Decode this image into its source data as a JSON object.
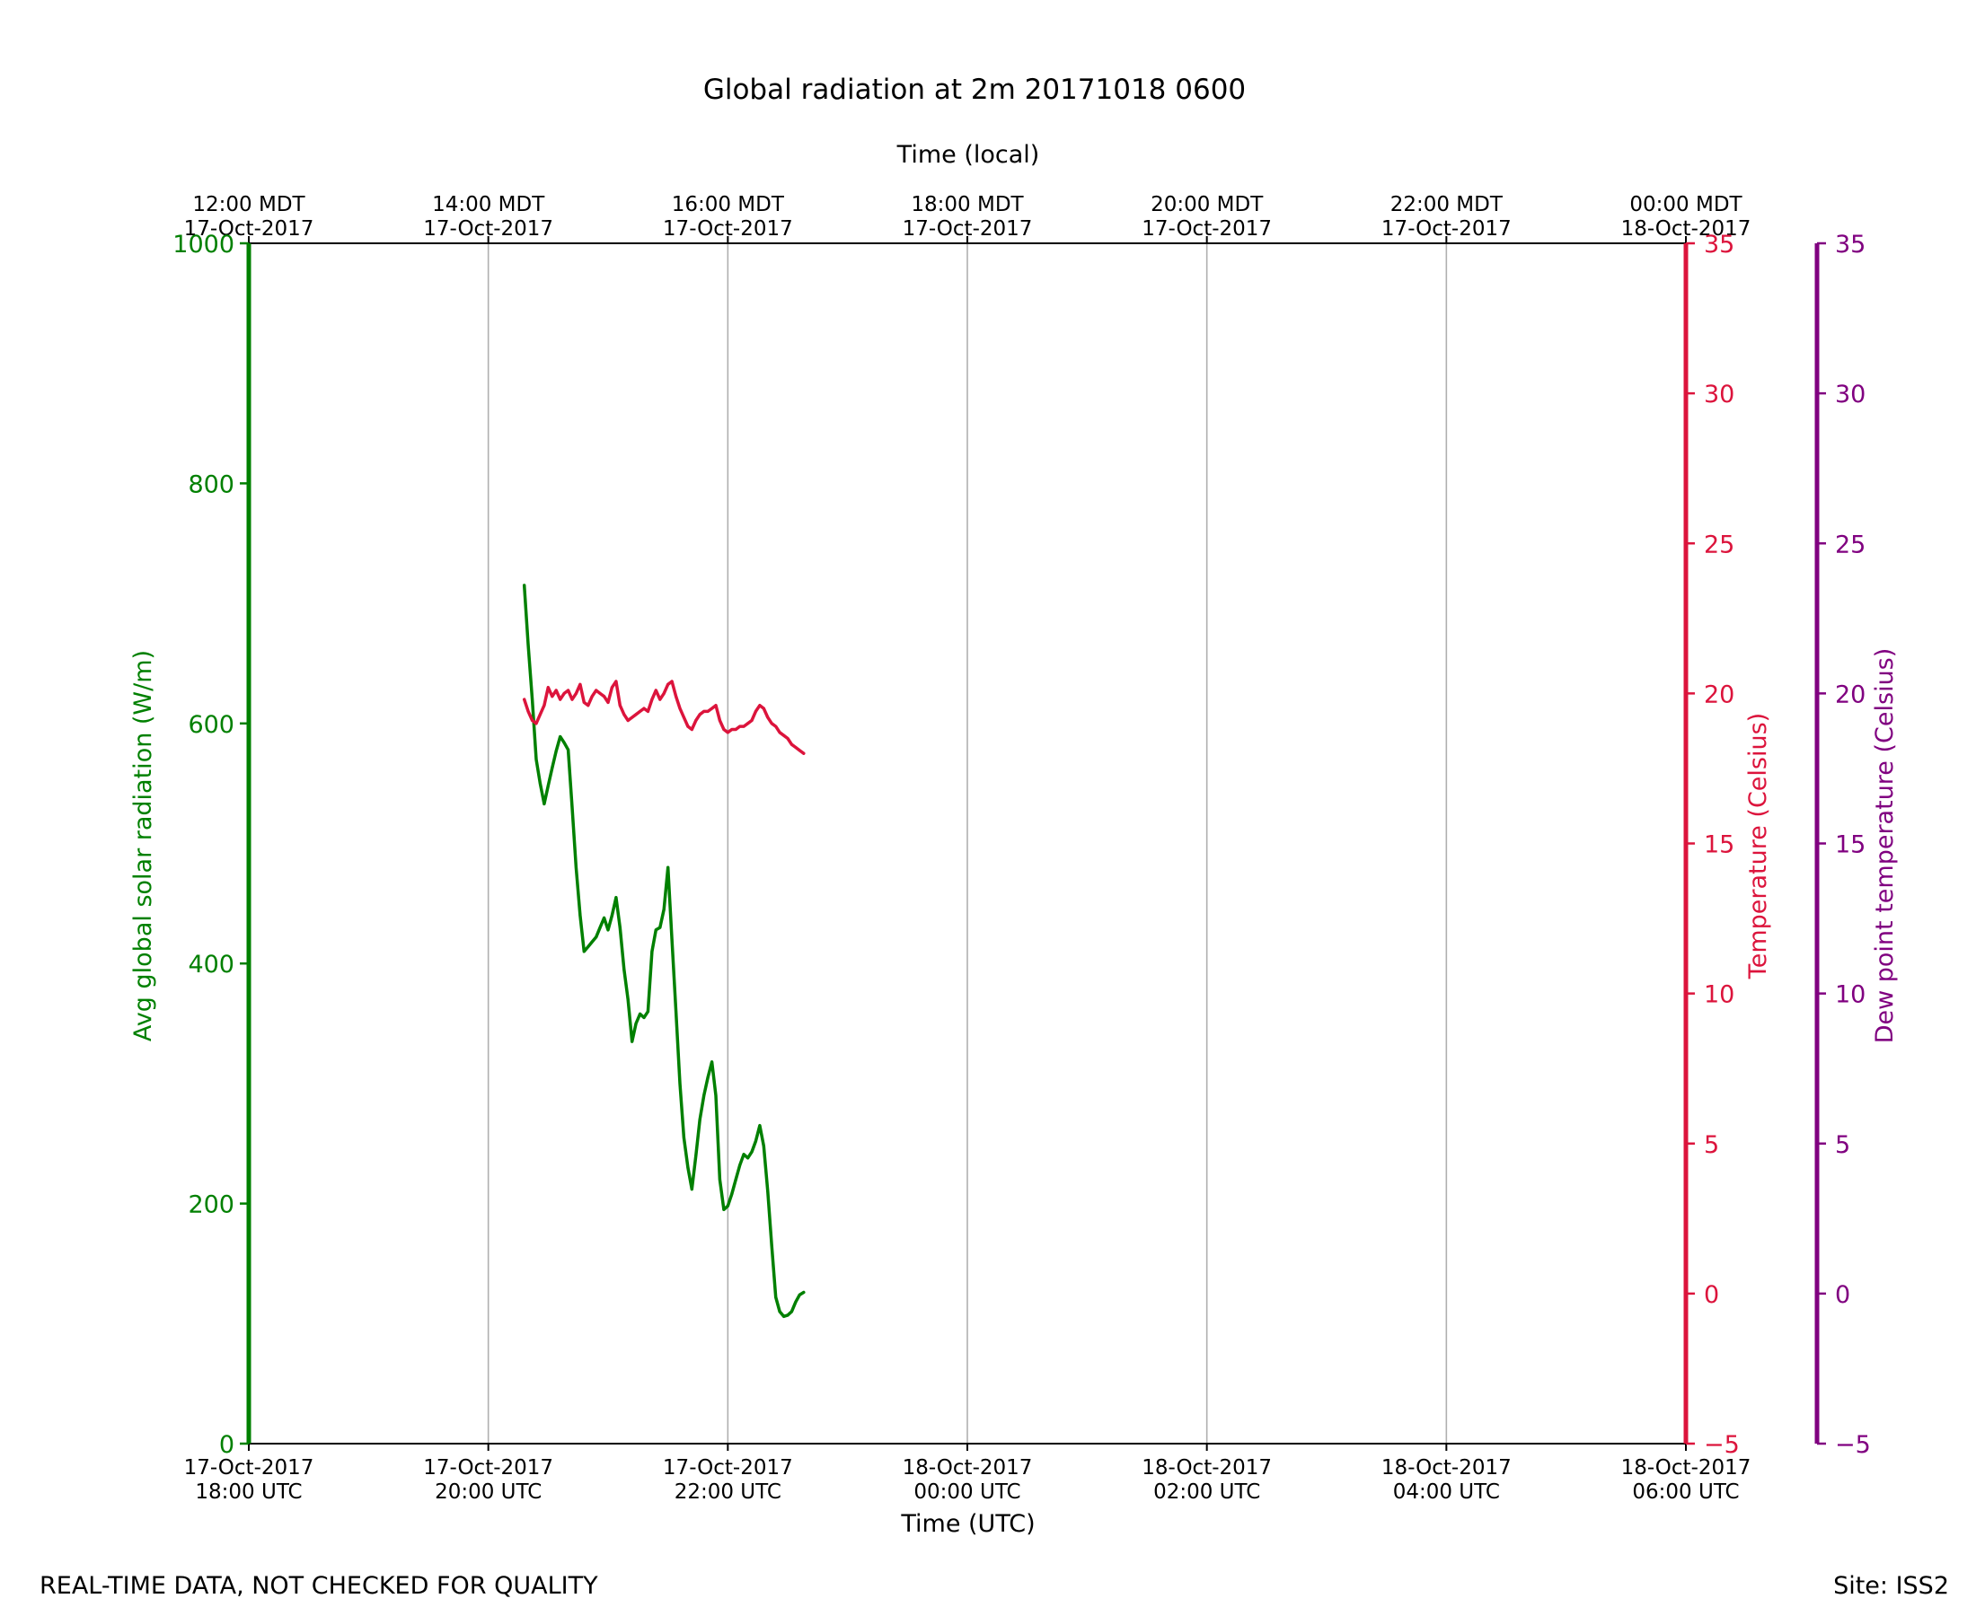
{
  "chart_data": {
    "type": "line",
    "title": "Global radiation at 2m 20171018 0600",
    "xlabel": "Time (UTC)",
    "top_xlabel": "Time (local)",
    "ylabel_left": "Avg global solar radiation (W/m)",
    "ylabel_right_1": "Temperature (Celsius)",
    "ylabel_right_2": "Dew point temperature (Celsius)",
    "xlim": [
      "2017-10-17T18:00Z",
      "2017-10-18T06:00Z"
    ],
    "ylim_left": [
      0,
      1000
    ],
    "ylim_right_1": [
      -5,
      35
    ],
    "ylim_right_2": [
      -5,
      35
    ],
    "grid": "vertical lines at bottom x-axis ticks",
    "x_ticks_bottom": [
      {
        "t": "2017-10-17T18:00Z",
        "line1": "17-Oct-2017",
        "line2": "18:00 UTC"
      },
      {
        "t": "2017-10-17T20:00Z",
        "line1": "17-Oct-2017",
        "line2": "20:00 UTC"
      },
      {
        "t": "2017-10-17T22:00Z",
        "line1": "17-Oct-2017",
        "line2": "22:00 UTC"
      },
      {
        "t": "2017-10-18T00:00Z",
        "line1": "18-Oct-2017",
        "line2": "00:00 UTC"
      },
      {
        "t": "2017-10-18T02:00Z",
        "line1": "18-Oct-2017",
        "line2": "02:00 UTC"
      },
      {
        "t": "2017-10-18T04:00Z",
        "line1": "18-Oct-2017",
        "line2": "04:00 UTC"
      },
      {
        "t": "2017-10-18T06:00Z",
        "line1": "18-Oct-2017",
        "line2": "06:00 UTC"
      }
    ],
    "x_ticks_top": [
      {
        "t": "2017-10-17T18:00Z",
        "line1": "12:00 MDT",
        "line2": "17-Oct-2017"
      },
      {
        "t": "2017-10-17T20:00Z",
        "line1": "14:00 MDT",
        "line2": "17-Oct-2017"
      },
      {
        "t": "2017-10-17T22:00Z",
        "line1": "16:00 MDT",
        "line2": "17-Oct-2017"
      },
      {
        "t": "2017-10-18T00:00Z",
        "line1": "18:00 MDT",
        "line2": "17-Oct-2017"
      },
      {
        "t": "2017-10-18T02:00Z",
        "line1": "20:00 MDT",
        "line2": "17-Oct-2017"
      },
      {
        "t": "2017-10-18T04:00Z",
        "line1": "22:00 MDT",
        "line2": "17-Oct-2017"
      },
      {
        "t": "2017-10-18T06:00Z",
        "line1": "00:00 MDT",
        "line2": "18-Oct-2017"
      }
    ],
    "y_ticks_left": [
      0,
      200,
      400,
      600,
      800,
      1000
    ],
    "y_ticks_right_1": [
      -5,
      0,
      5,
      10,
      15,
      20,
      25,
      30,
      35
    ],
    "y_ticks_right_2": [
      -5,
      0,
      5,
      10,
      15,
      20,
      25,
      30,
      35
    ],
    "series": [
      {
        "color": "#008000",
        "axis": "left",
        "points": [
          [
            "2017-10-17T20:18Z",
            715
          ],
          [
            "2017-10-17T20:20Z",
            665
          ],
          [
            "2017-10-17T20:22Z",
            620
          ],
          [
            "2017-10-17T20:24Z",
            570
          ],
          [
            "2017-10-17T20:26Z",
            550
          ],
          [
            "2017-10-17T20:28Z",
            533
          ],
          [
            "2017-10-17T20:30Z",
            548
          ],
          [
            "2017-10-17T20:32Z",
            563
          ],
          [
            "2017-10-17T20:34Z",
            577
          ],
          [
            "2017-10-17T20:36Z",
            589
          ],
          [
            "2017-10-17T20:38Z",
            584
          ],
          [
            "2017-10-17T20:40Z",
            578
          ],
          [
            "2017-10-17T20:42Z",
            530
          ],
          [
            "2017-10-17T20:44Z",
            480
          ],
          [
            "2017-10-17T20:46Z",
            440
          ],
          [
            "2017-10-17T20:48Z",
            410
          ],
          [
            "2017-10-17T20:50Z",
            414
          ],
          [
            "2017-10-17T20:52Z",
            418
          ],
          [
            "2017-10-17T20:54Z",
            422
          ],
          [
            "2017-10-17T20:56Z",
            430
          ],
          [
            "2017-10-17T20:58Z",
            438
          ],
          [
            "2017-10-17T21:00Z",
            428
          ],
          [
            "2017-10-17T21:02Z",
            440
          ],
          [
            "2017-10-17T21:04Z",
            455
          ],
          [
            "2017-10-17T21:06Z",
            430
          ],
          [
            "2017-10-17T21:08Z",
            395
          ],
          [
            "2017-10-17T21:10Z",
            370
          ],
          [
            "2017-10-17T21:12Z",
            335
          ],
          [
            "2017-10-17T21:14Z",
            350
          ],
          [
            "2017-10-17T21:16Z",
            358
          ],
          [
            "2017-10-17T21:18Z",
            355
          ],
          [
            "2017-10-17T21:20Z",
            360
          ],
          [
            "2017-10-17T21:22Z",
            410
          ],
          [
            "2017-10-17T21:24Z",
            428
          ],
          [
            "2017-10-17T21:26Z",
            430
          ],
          [
            "2017-10-17T21:28Z",
            445
          ],
          [
            "2017-10-17T21:30Z",
            480
          ],
          [
            "2017-10-17T21:32Z",
            420
          ],
          [
            "2017-10-17T21:34Z",
            360
          ],
          [
            "2017-10-17T21:36Z",
            300
          ],
          [
            "2017-10-17T21:38Z",
            255
          ],
          [
            "2017-10-17T21:40Z",
            230
          ],
          [
            "2017-10-17T21:42Z",
            212
          ],
          [
            "2017-10-17T21:44Z",
            240
          ],
          [
            "2017-10-17T21:46Z",
            270
          ],
          [
            "2017-10-17T21:48Z",
            290
          ],
          [
            "2017-10-17T21:50Z",
            305
          ],
          [
            "2017-10-17T21:52Z",
            318
          ],
          [
            "2017-10-17T21:54Z",
            290
          ],
          [
            "2017-10-17T21:56Z",
            220
          ],
          [
            "2017-10-17T21:58Z",
            195
          ],
          [
            "2017-10-17T22:00Z",
            198
          ],
          [
            "2017-10-17T22:02Z",
            208
          ],
          [
            "2017-10-17T22:04Z",
            220
          ],
          [
            "2017-10-17T22:06Z",
            232
          ],
          [
            "2017-10-17T22:08Z",
            241
          ],
          [
            "2017-10-17T22:10Z",
            238
          ],
          [
            "2017-10-17T22:12Z",
            243
          ],
          [
            "2017-10-17T22:14Z",
            252
          ],
          [
            "2017-10-17T22:16Z",
            265
          ],
          [
            "2017-10-17T22:18Z",
            248
          ],
          [
            "2017-10-17T22:20Z",
            210
          ],
          [
            "2017-10-17T22:22Z",
            165
          ],
          [
            "2017-10-17T22:24Z",
            122
          ],
          [
            "2017-10-17T22:26Z",
            110
          ],
          [
            "2017-10-17T22:28Z",
            106
          ],
          [
            "2017-10-17T22:30Z",
            107
          ],
          [
            "2017-10-17T22:32Z",
            110
          ],
          [
            "2017-10-17T22:34Z",
            118
          ],
          [
            "2017-10-17T22:36Z",
            124
          ],
          [
            "2017-10-17T22:38Z",
            126
          ]
        ]
      },
      {
        "color": "#DC143C",
        "axis": "right_1",
        "points": [
          [
            "2017-10-17T20:18Z",
            19.8
          ],
          [
            "2017-10-17T20:20Z",
            19.4
          ],
          [
            "2017-10-17T20:22Z",
            19.1
          ],
          [
            "2017-10-17T20:24Z",
            19.0
          ],
          [
            "2017-10-17T20:26Z",
            19.3
          ],
          [
            "2017-10-17T20:28Z",
            19.6
          ],
          [
            "2017-10-17T20:30Z",
            20.2
          ],
          [
            "2017-10-17T20:32Z",
            19.9
          ],
          [
            "2017-10-17T20:34Z",
            20.1
          ],
          [
            "2017-10-17T20:36Z",
            19.8
          ],
          [
            "2017-10-17T20:38Z",
            20.0
          ],
          [
            "2017-10-17T20:40Z",
            20.1
          ],
          [
            "2017-10-17T20:42Z",
            19.8
          ],
          [
            "2017-10-17T20:44Z",
            20.0
          ],
          [
            "2017-10-17T20:46Z",
            20.3
          ],
          [
            "2017-10-17T20:48Z",
            19.7
          ],
          [
            "2017-10-17T20:50Z",
            19.6
          ],
          [
            "2017-10-17T20:52Z",
            19.9
          ],
          [
            "2017-10-17T20:54Z",
            20.1
          ],
          [
            "2017-10-17T20:56Z",
            20.0
          ],
          [
            "2017-10-17T20:58Z",
            19.9
          ],
          [
            "2017-10-17T21:00Z",
            19.7
          ],
          [
            "2017-10-17T21:02Z",
            20.2
          ],
          [
            "2017-10-17T21:04Z",
            20.4
          ],
          [
            "2017-10-17T21:06Z",
            19.6
          ],
          [
            "2017-10-17T21:08Z",
            19.3
          ],
          [
            "2017-10-17T21:10Z",
            19.1
          ],
          [
            "2017-10-17T21:12Z",
            19.2
          ],
          [
            "2017-10-17T21:14Z",
            19.3
          ],
          [
            "2017-10-17T21:16Z",
            19.4
          ],
          [
            "2017-10-17T21:18Z",
            19.5
          ],
          [
            "2017-10-17T21:20Z",
            19.4
          ],
          [
            "2017-10-17T21:22Z",
            19.8
          ],
          [
            "2017-10-17T21:24Z",
            20.1
          ],
          [
            "2017-10-17T21:26Z",
            19.8
          ],
          [
            "2017-10-17T21:28Z",
            20.0
          ],
          [
            "2017-10-17T21:30Z",
            20.3
          ],
          [
            "2017-10-17T21:32Z",
            20.4
          ],
          [
            "2017-10-17T21:34Z",
            19.9
          ],
          [
            "2017-10-17T21:36Z",
            19.5
          ],
          [
            "2017-10-17T21:38Z",
            19.2
          ],
          [
            "2017-10-17T21:40Z",
            18.9
          ],
          [
            "2017-10-17T21:42Z",
            18.8
          ],
          [
            "2017-10-17T21:44Z",
            19.1
          ],
          [
            "2017-10-17T21:46Z",
            19.3
          ],
          [
            "2017-10-17T21:48Z",
            19.4
          ],
          [
            "2017-10-17T21:50Z",
            19.4
          ],
          [
            "2017-10-17T21:52Z",
            19.5
          ],
          [
            "2017-10-17T21:54Z",
            19.6
          ],
          [
            "2017-10-17T21:56Z",
            19.1
          ],
          [
            "2017-10-17T21:58Z",
            18.8
          ],
          [
            "2017-10-17T22:00Z",
            18.7
          ],
          [
            "2017-10-17T22:02Z",
            18.8
          ],
          [
            "2017-10-17T22:04Z",
            18.8
          ],
          [
            "2017-10-17T22:06Z",
            18.9
          ],
          [
            "2017-10-17T22:08Z",
            18.9
          ],
          [
            "2017-10-17T22:10Z",
            19.0
          ],
          [
            "2017-10-17T22:12Z",
            19.1
          ],
          [
            "2017-10-17T22:14Z",
            19.4
          ],
          [
            "2017-10-17T22:16Z",
            19.6
          ],
          [
            "2017-10-17T22:18Z",
            19.5
          ],
          [
            "2017-10-17T22:20Z",
            19.2
          ],
          [
            "2017-10-17T22:22Z",
            19.0
          ],
          [
            "2017-10-17T22:24Z",
            18.9
          ],
          [
            "2017-10-17T22:26Z",
            18.7
          ],
          [
            "2017-10-17T22:28Z",
            18.6
          ],
          [
            "2017-10-17T22:30Z",
            18.5
          ],
          [
            "2017-10-17T22:32Z",
            18.3
          ],
          [
            "2017-10-17T22:34Z",
            18.2
          ],
          [
            "2017-10-17T22:36Z",
            18.1
          ],
          [
            "2017-10-17T22:38Z",
            18.0
          ]
        ]
      }
    ]
  },
  "footer": {
    "left": "REAL-TIME DATA, NOT CHECKED FOR QUALITY",
    "right": "Site: ISS2"
  }
}
